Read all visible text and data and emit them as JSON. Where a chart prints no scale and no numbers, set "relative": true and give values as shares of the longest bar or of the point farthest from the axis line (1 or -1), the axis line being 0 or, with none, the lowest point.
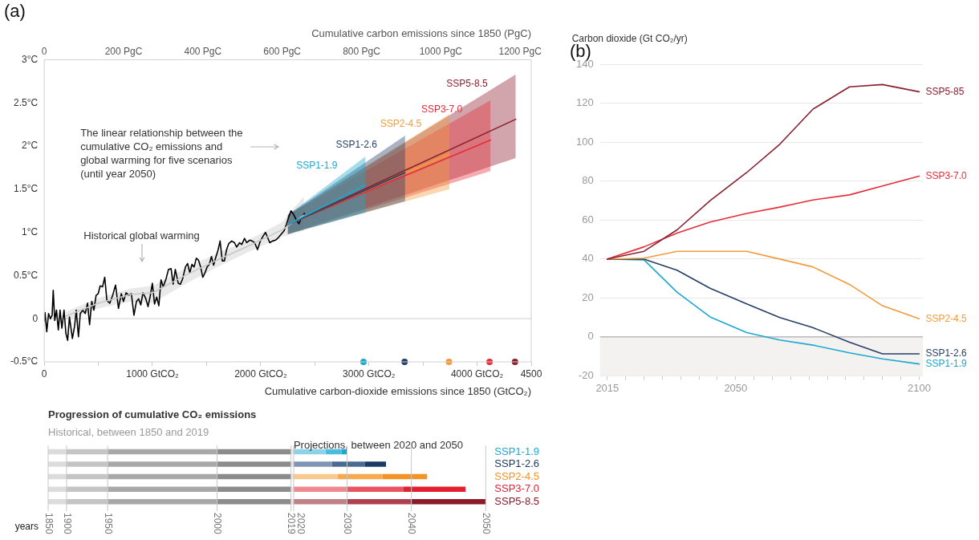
{
  "chart_data": [
    {
      "type": "line",
      "title": "(a)",
      "xlabel": "Cumulative carbon-dioxide emissions since 1850 (GtCO₂)",
      "x2label": "Cumulative carbon emissions since 1850 (PgC)",
      "xlim": [
        0,
        4500
      ],
      "xticks": [
        0,
        {
          "value": 500,
          "label": null
        },
        {
          "value": 1000,
          "label": "1000 GtCO₂"
        },
        {
          "value": 1500,
          "label": null
        },
        {
          "value": 2000,
          "label": "2000 GtCO₂"
        },
        {
          "value": 2500,
          "label": null
        },
        {
          "value": 3000,
          "label": "3000 GtCO₂"
        },
        {
          "value": 3500,
          "label": null
        },
        {
          "value": 4000,
          "label": "4000 GtCO₂"
        },
        4500
      ],
      "x2lim": [
        0,
        1228
      ],
      "x2ticks": [
        0,
        {
          "value": 200,
          "label": "200 PgC"
        },
        {
          "value": 400,
          "label": "400 PgC"
        },
        {
          "value": 600,
          "label": "600 PgC"
        },
        {
          "value": 800,
          "label": "800 PgC"
        },
        {
          "value": 1000,
          "label": "1000 PgC"
        },
        {
          "value": 1200,
          "label": "1200 PgC"
        }
      ],
      "ylim": [
        -0.5,
        3
      ],
      "yticks": [
        {
          "value": -0.5,
          "label": "-0.5°C"
        },
        0,
        {
          "value": 0.5,
          "label": "0.5°C"
        },
        {
          "value": 1,
          "label": "1°C"
        },
        {
          "value": 1.5,
          "label": "1.5°C"
        },
        {
          "value": 2,
          "label": "2°C"
        },
        {
          "value": 2.5,
          "label": "2.5°C"
        },
        {
          "value": 3,
          "label": "3°C"
        }
      ],
      "ref_lines": [
        {
          "axis": "y",
          "value": 0,
          "color": "#d9d9d9"
        }
      ],
      "annotations": [
        "The linear relationship between the cumulative CO₂ emissions and global warming for five scenarios (until year 2050)",
        "Historical global warming"
      ],
      "series": [
        {
          "type": "line",
          "name": "SSP1-1.9",
          "color": "#1ba8cf",
          "x": [
            2250,
            2969
          ],
          "values": [
            1.09,
            1.55
          ],
          "lower": [
            0.98,
            1.23
          ],
          "upper": [
            1.2,
            1.88
          ]
        },
        {
          "type": "line",
          "name": "SSP1-2.6",
          "color": "#263f66",
          "x": [
            2250,
            3335
          ],
          "values": [
            1.09,
            1.69
          ],
          "lower": [
            0.98,
            1.36
          ],
          "upper": [
            1.2,
            2.12
          ]
        },
        {
          "type": "line",
          "name": "SSP2-4.5",
          "color": "#f39a3a",
          "x": [
            2250,
            3745
          ],
          "values": [
            1.09,
            1.91
          ],
          "lower": [
            0.98,
            1.5
          ],
          "upper": [
            1.2,
            2.37
          ]
        },
        {
          "type": "line",
          "name": "SSP3-7.0",
          "color": "#e52d3a",
          "x": [
            2250,
            4124
          ],
          "values": [
            1.09,
            2.07
          ],
          "lower": [
            0.98,
            1.71
          ],
          "upper": [
            1.2,
            2.53
          ]
        },
        {
          "type": "line",
          "name": "SSP5-8.5",
          "color": "#8b1f2e",
          "x": [
            2250,
            4357
          ],
          "values": [
            1.09,
            2.31
          ],
          "lower": [
            0.98,
            1.86
          ],
          "upper": [
            1.2,
            2.83
          ]
        },
        {
          "type": "line",
          "color": "#c8c8c8",
          "x": [
            200,
            500,
            800,
            1000,
            1300,
            1600,
            1900,
            2200,
            2400
          ],
          "values": [
            0.03,
            0.18,
            0.28,
            0.3,
            0.5,
            0.68,
            0.85,
            1.03,
            1.2
          ],
          "lower": [
            -0.02,
            0.12,
            0.2,
            0.18,
            0.4,
            0.6,
            0.78,
            0.95,
            1.02
          ],
          "upper": [
            0.08,
            0.24,
            0.35,
            0.38,
            0.58,
            0.76,
            0.92,
            1.12,
            1.42
          ]
        },
        {
          "type": "line",
          "color": "#000000",
          "x": [
            0,
            7,
            23,
            40,
            57,
            73,
            83,
            97,
            113,
            130,
            146,
            163,
            183,
            200,
            216,
            233,
            260,
            280,
            296,
            316,
            333,
            356,
            379,
            400,
            419,
            439,
            459,
            479,
            499,
            516,
            539,
            559,
            579,
            606,
            632,
            659,
            686,
            712,
            732,
            756,
            782,
            805,
            829,
            852,
            872,
            892,
            912,
            939,
            959,
            979,
            999,
            1019,
            1039,
            1059,
            1079,
            1099,
            1125,
            1148,
            1172,
            1191,
            1211,
            1238,
            1258,
            1278,
            1305,
            1325,
            1345,
            1365,
            1385,
            1405,
            1425,
            1445,
            1465,
            1485,
            1505,
            1525,
            1545,
            1565,
            1585,
            1605,
            1625,
            1645,
            1665,
            1685,
            1705,
            1732,
            1758,
            1778,
            1805,
            1825,
            1851,
            1871,
            1898,
            1921,
            1944,
            1971,
            1997,
            2024,
            2044,
            2064,
            2084,
            2110,
            2137,
            2164,
            2190,
            2217,
            2237,
            2257,
            2280,
            2303,
            2327,
            2353,
            2377,
            2404
          ],
          "values": [
            -0.03,
            0.07,
            -0.15,
            0.06,
            0,
            0.04,
            0.33,
            -0.02,
            0.1,
            -0.13,
            0.1,
            -0.11,
            0.1,
            -0.17,
            -0.25,
            0.02,
            -0.23,
            -0.09,
            0.1,
            -0.21,
            0.06,
            0.1,
            0.06,
            0.18,
            -0.07,
            0.2,
            0.1,
            0.27,
            0.29,
            0.38,
            0.37,
            0.48,
            0.21,
            0.18,
            0.27,
            0.39,
            0.12,
            0.29,
            0.2,
            0.3,
            0.27,
            0.29,
            0.04,
            0.2,
            0.23,
            0.16,
            0.3,
            0.23,
            0.14,
            0.26,
            0.41,
            0.17,
            0.25,
            0.15,
            0.45,
            0.37,
            0.46,
            0.57,
            0.58,
            0.4,
            0.57,
            0.41,
            0.4,
            0.46,
            0.6,
            0.64,
            0.53,
            0.63,
            0.6,
            0.7,
            0.68,
            0.6,
            0.48,
            0.53,
            0.6,
            0.63,
            0.72,
            0.62,
            0.71,
            0.79,
            0.9,
            0.67,
            0.67,
            0.8,
            0.87,
            0.9,
            0.88,
            0.83,
            0.88,
            0.86,
            0.93,
            0.88,
            0.91,
            0.9,
            0.88,
            0.8,
            0.9,
            0.96,
            1.0,
            0.94,
            0.88,
            0.9,
            0.91,
            0.94,
            0.98,
            1.02,
            1.09,
            1.17,
            1.25,
            1.21,
            1.15,
            1.1,
            1.17,
            1.22
          ]
        },
        {
          "type": "scatter",
          "marker": "circle",
          "x": [
            2950,
            3330,
            3740,
            4115,
            4350
          ],
          "values": [
            -0.5,
            -0.5,
            -0.5,
            -0.5,
            -0.5
          ],
          "colors": [
            "#1ba8cf",
            "#263f66",
            "#f39a3a",
            "#e52d3a",
            "#8b1f2e"
          ]
        }
      ]
    },
    {
      "type": "bar",
      "orientation": "horizontal",
      "stacked": true,
      "title": "Progression of cumulative CO₂ emissions",
      "subtitle": "Historical, between 1850 and 2019",
      "xlabel": "years",
      "relative": true,
      "annotations": [
        "Projections, between 2020 and 2050",
        "1850",
        "1900",
        "1950",
        "2000",
        "2019",
        "2020",
        "2030",
        "2040",
        "2050"
      ],
      "categories": [
        "SSP1-1.9",
        "SSP1-2.6",
        "SSP2-4.5",
        "SSP3-7.0",
        "SSP5-8.5"
      ],
      "series": [
        {
          "color": "#dcdcdc",
          "values": [
            0.042,
            0.042,
            0.042,
            0.042,
            0.042
          ]
        },
        {
          "color": "#c4c4c4",
          "values": [
            0.094,
            0.094,
            0.094,
            0.094,
            0.094
          ]
        },
        {
          "color": "#a8a8a8",
          "values": [
            0.25,
            0.25,
            0.25,
            0.25,
            0.25
          ]
        },
        {
          "color": "#8c8c8c",
          "values": [
            0.169,
            0.169,
            0.169,
            0.169,
            0.169
          ]
        },
        {
          "color": "#e6e6e6",
          "values": [
            0.006,
            0.006,
            0.006,
            0.006,
            0.006
          ]
        },
        {
          "colors": [
            "#8dd3e8",
            "#7f95b3",
            "#f9c98f",
            "#f08890",
            "#c08088"
          ],
          "values": [
            0.073,
            0.087,
            0.101,
            0.122,
            0.122
          ]
        },
        {
          "colors": [
            "#4dbbdb",
            "#4b6a92",
            "#f7a94e",
            "#e8545f",
            "#b04050"
          ],
          "values": [
            0.036,
            0.075,
            0.102,
            0.128,
            0.147
          ]
        },
        {
          "colors": [
            "#1ba8cf",
            "#1b3a63",
            "#f39225",
            "#e2202f",
            "#8b1a2b"
          ],
          "values": [
            0.013,
            0.049,
            0.102,
            0.143,
            0.17
          ]
        }
      ]
    },
    {
      "type": "line",
      "title": "(b)",
      "ylabel": "Carbon dioxide (Gt CO₂/yr)",
      "x": [
        2015,
        2025,
        2034,
        2043,
        2053,
        2062,
        2071,
        2081,
        2090,
        2100
      ],
      "xlim": [
        2013,
        2101
      ],
      "xticks": [
        2015,
        {
          "value": 2020,
          "label": null
        },
        {
          "value": 2025,
          "label": null
        },
        {
          "value": 2030,
          "label": null
        },
        {
          "value": 2035,
          "label": null
        },
        {
          "value": 2040,
          "label": null
        },
        {
          "value": 2045,
          "label": null
        },
        2050,
        {
          "value": 2055,
          "label": null
        },
        {
          "value": 2060,
          "label": null
        },
        {
          "value": 2065,
          "label": null
        },
        {
          "value": 2070,
          "label": null
        },
        {
          "value": 2075,
          "label": null
        },
        {
          "value": 2080,
          "label": null
        },
        {
          "value": 2085,
          "label": null
        },
        {
          "value": 2090,
          "label": null
        },
        {
          "value": 2095,
          "label": null
        },
        2100
      ],
      "ylim": [
        -20,
        140
      ],
      "yticks": [
        -20,
        0,
        20,
        40,
        60,
        80,
        100,
        120,
        140
      ],
      "grid": "y",
      "ref_lines": [
        {
          "axis": "y",
          "value": 0,
          "color": "#b0b0b0"
        }
      ],
      "bands": [
        {
          "axis": "y",
          "from": -20,
          "to": 0,
          "color": "#f3f2f0"
        }
      ],
      "series": [
        {
          "type": "line",
          "name": "SSP5-85",
          "color": "#8b1f2e",
          "values": [
            40,
            44,
            55,
            70,
            84.5,
            99,
            117,
            128.5,
            129.7,
            126
          ]
        },
        {
          "type": "line",
          "name": "SSP3-7.0",
          "color": "#e52d3a",
          "values": [
            40,
            46.3,
            53.4,
            59,
            63.5,
            66.7,
            70.4,
            73,
            77.6,
            82.6
          ]
        },
        {
          "type": "line",
          "name": "SSP2-4.5",
          "color": "#f39a3a",
          "values": [
            40,
            40.5,
            44,
            44,
            44,
            40,
            36,
            27,
            16,
            9.3
          ]
        },
        {
          "type": "line",
          "name": "SSP1-2.6",
          "color": "#263f66",
          "values": [
            40,
            40,
            34.3,
            25,
            17,
            10,
            4.8,
            -2.7,
            -8.7,
            -8.7
          ]
        },
        {
          "type": "line",
          "name": "SSP1-1.9",
          "color": "#1ba8cf",
          "values": [
            40,
            39.6,
            23,
            10.3,
            2.2,
            -1.6,
            -4.2,
            -8.2,
            -11.3,
            -13.9
          ]
        }
      ]
    }
  ]
}
